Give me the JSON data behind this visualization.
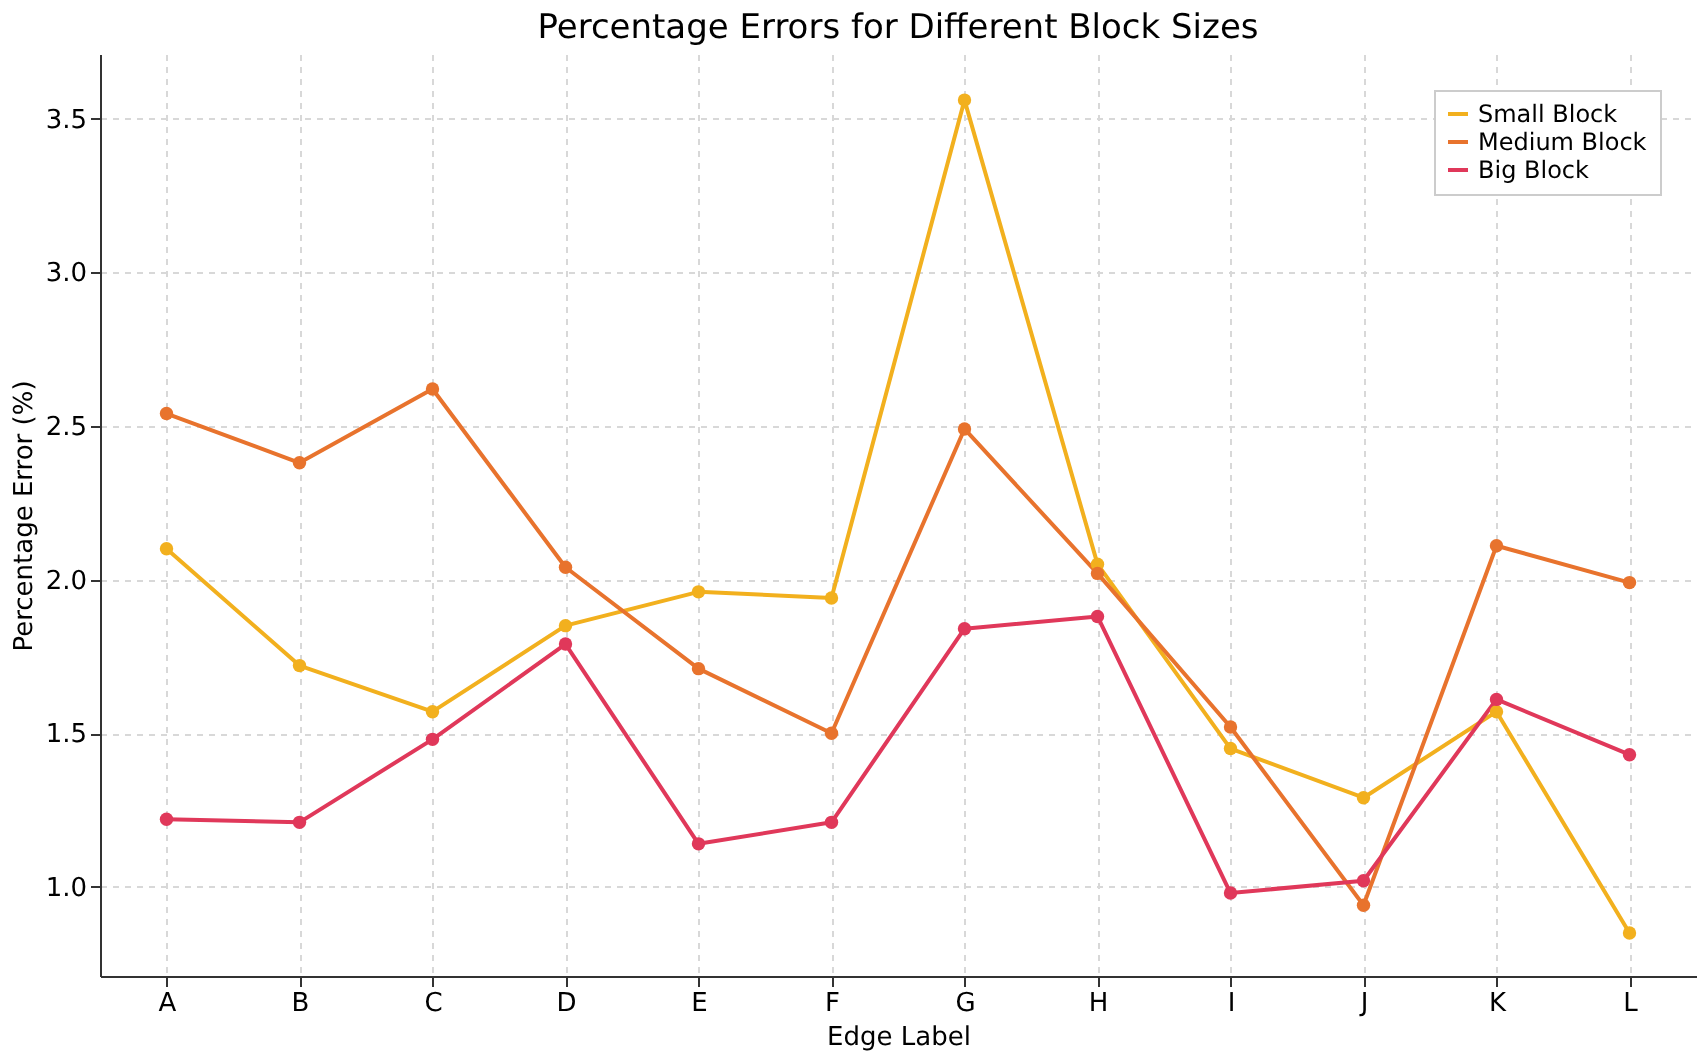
{
  "chart_data": {
    "type": "line",
    "title": "Percentage Errors for Different Block Sizes",
    "xlabel": "Edge Label",
    "ylabel": "Percentage Error (%)",
    "categories": [
      "A",
      "B",
      "C",
      "D",
      "E",
      "F",
      "G",
      "H",
      "I",
      "J",
      "K",
      "L"
    ],
    "series": [
      {
        "name": "Small Block",
        "color": "#f2b01e",
        "values": [
          2.1,
          1.72,
          1.57,
          1.85,
          1.96,
          1.94,
          3.56,
          2.05,
          1.45,
          1.29,
          1.57,
          0.85
        ]
      },
      {
        "name": "Medium Block",
        "color": "#e8732d",
        "values": [
          2.54,
          2.38,
          2.62,
          2.04,
          1.71,
          1.5,
          2.49,
          2.02,
          1.52,
          0.94,
          2.11,
          1.99
        ]
      },
      {
        "name": "Big Block",
        "color": "#e0385a",
        "values": [
          1.22,
          1.21,
          1.48,
          1.79,
          1.14,
          1.21,
          1.84,
          1.88,
          0.98,
          1.02,
          1.61,
          1.43
        ]
      }
    ],
    "ylim": [
      0.71,
      3.71
    ],
    "yticks": [
      {
        "value": 1,
        "label": "1.0"
      },
      1.5,
      {
        "value": 2,
        "label": "2.0"
      },
      2.5,
      {
        "value": 3,
        "label": "3.0"
      },
      3.5
    ],
    "grid": true,
    "legend": "top right",
    "marker": "circle",
    "line_style": "solid"
  }
}
